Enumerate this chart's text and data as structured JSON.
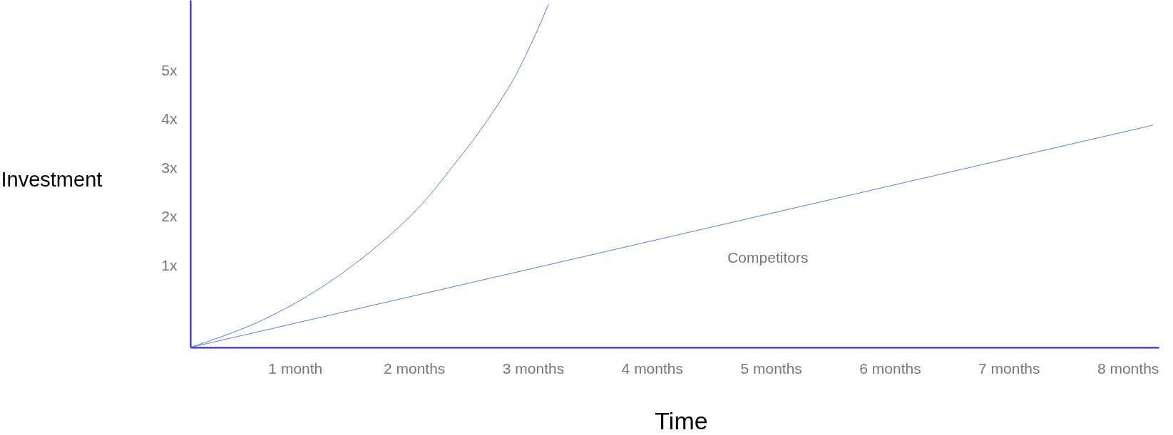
{
  "chart_data": {
    "type": "line",
    "xlabel": "Time",
    "ylabel": "Investment",
    "xlim": [
      0.12,
      8.26
    ],
    "xticks": [
      {
        "value": 1,
        "label": "1 month"
      },
      {
        "value": 2,
        "label": "2 months"
      },
      {
        "value": 3,
        "label": "3 months"
      },
      {
        "value": 4,
        "label": "4 months"
      },
      {
        "value": 5,
        "label": "5 months"
      },
      {
        "value": 6,
        "label": "6 months"
      },
      {
        "value": 7,
        "label": "7 months"
      },
      {
        "value": 8,
        "label": "8 months"
      }
    ],
    "ylim": [
      -0.68,
      6.45
    ],
    "yticks": [
      {
        "value": 1,
        "label": "1x"
      },
      {
        "value": 2,
        "label": "2x"
      },
      {
        "value": 3,
        "label": "3x"
      },
      {
        "value": 4,
        "label": "4x"
      },
      {
        "value": 5,
        "label": "5x"
      }
    ],
    "series": [
      {
        "color": "#4d7cff",
        "x": [
          0.12,
          0.38,
          0.68,
          0.92,
          1.4,
          1.6,
          1.8,
          2.0,
          2.12,
          2.32,
          2.52,
          2.72,
          2.84,
          2.91,
          3.06,
          3.13
        ],
        "values": [
          -0.68,
          -0.46,
          -0.17,
          0.12,
          0.85,
          1.22,
          1.63,
          2.09,
          2.41,
          3.02,
          3.65,
          4.36,
          4.84,
          5.17,
          5.96,
          6.36
        ]
      },
      {
        "name": "Competitors",
        "color": "#4d7cff",
        "x": [
          0.12,
          8.21
        ],
        "values": [
          -0.68,
          3.88
        ]
      }
    ]
  }
}
